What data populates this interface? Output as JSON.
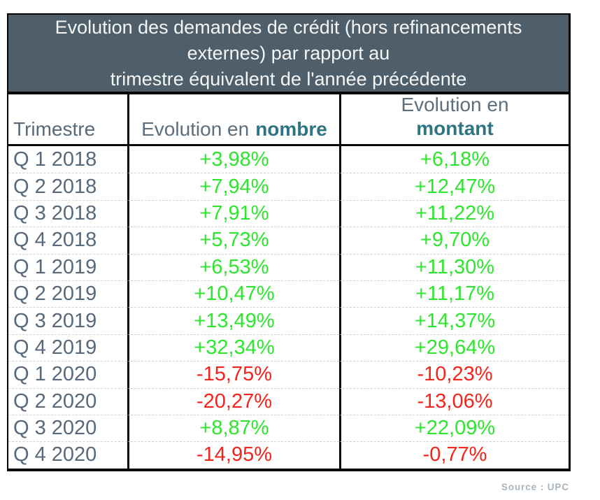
{
  "title": {
    "lines": [
      "Evolution des demandes de crédit (hors refinancements",
      "externes) par rapport au",
      "trimestre équivalent de l'année précédente"
    ]
  },
  "header": {
    "col1": "Trimestre",
    "col2_prefix": "Evolution en",
    "col2_bold": "nombre",
    "col3_prefix": "Evolution en",
    "col3_bold": "montant"
  },
  "rows": [
    {
      "quarter": "Q 1 2018",
      "nombre": "+3,98%",
      "montant": "+6,18%"
    },
    {
      "quarter": "Q 2 2018",
      "nombre": "+7,94%",
      "montant": "+12,47%"
    },
    {
      "quarter": "Q 3 2018",
      "nombre": "+7,91%",
      "montant": "+11,22%"
    },
    {
      "quarter": "Q 4 2018",
      "nombre": "+5,73%",
      "montant": "+9,70%"
    },
    {
      "quarter": "Q 1 2019",
      "nombre": "+6,53%",
      "montant": "+11,30%"
    },
    {
      "quarter": "Q 2 2019",
      "nombre": "+10,47%",
      "montant": "+11,17%"
    },
    {
      "quarter": "Q 3 2019",
      "nombre": "+13,49%",
      "montant": "+14,37%"
    },
    {
      "quarter": "Q 4 2019",
      "nombre": "+32,34%",
      "montant": "+29,64%"
    },
    {
      "quarter": "Q 1 2020",
      "nombre": "-15,75%",
      "montant": "-10,23%"
    },
    {
      "quarter": "Q 2 2020",
      "nombre": "-20,27%",
      "montant": "-13,06%"
    },
    {
      "quarter": "Q 3 2020",
      "nombre": "+8,87%",
      "montant": "+22,09%"
    },
    {
      "quarter": "Q 4 2020",
      "nombre": "-14,95%",
      "montant": "-0,77%"
    }
  ],
  "source": "Source : UPC",
  "colors": {
    "positive": "#30e530",
    "negative": "#f2251c",
    "title_bg": "#4f5e6b",
    "quarter_text": "#57697a",
    "header_text": "#5e6e7d",
    "header_bold": "#2f7482"
  },
  "chart_data": {
    "type": "table",
    "title": "Evolution des demandes de crédit (hors refinancements externes) par rapport au trimestre équivalent de l'année précédente",
    "columns": [
      "Trimestre",
      "Evolution en nombre",
      "Evolution en montant"
    ],
    "units": "percent",
    "rows": [
      {
        "trimestre": "Q 1 2018",
        "evolution_nombre": 3.98,
        "evolution_montant": 6.18
      },
      {
        "trimestre": "Q 2 2018",
        "evolution_nombre": 7.94,
        "evolution_montant": 12.47
      },
      {
        "trimestre": "Q 3 2018",
        "evolution_nombre": 7.91,
        "evolution_montant": 11.22
      },
      {
        "trimestre": "Q 4 2018",
        "evolution_nombre": 5.73,
        "evolution_montant": 9.7
      },
      {
        "trimestre": "Q 1 2019",
        "evolution_nombre": 6.53,
        "evolution_montant": 11.3
      },
      {
        "trimestre": "Q 2 2019",
        "evolution_nombre": 10.47,
        "evolution_montant": 11.17
      },
      {
        "trimestre": "Q 3 2019",
        "evolution_nombre": 13.49,
        "evolution_montant": 14.37
      },
      {
        "trimestre": "Q 4 2019",
        "evolution_nombre": 32.34,
        "evolution_montant": 29.64
      },
      {
        "trimestre": "Q 1 2020",
        "evolution_nombre": -15.75,
        "evolution_montant": -10.23
      },
      {
        "trimestre": "Q 2 2020",
        "evolution_nombre": -20.27,
        "evolution_montant": -13.06
      },
      {
        "trimestre": "Q 3 2020",
        "evolution_nombre": 8.87,
        "evolution_montant": 22.09
      },
      {
        "trimestre": "Q 4 2020",
        "evolution_nombre": -14.95,
        "evolution_montant": -0.77
      }
    ],
    "source": "Source : UPC",
    "color_coding": "green = positive evolution, red = negative evolution"
  }
}
